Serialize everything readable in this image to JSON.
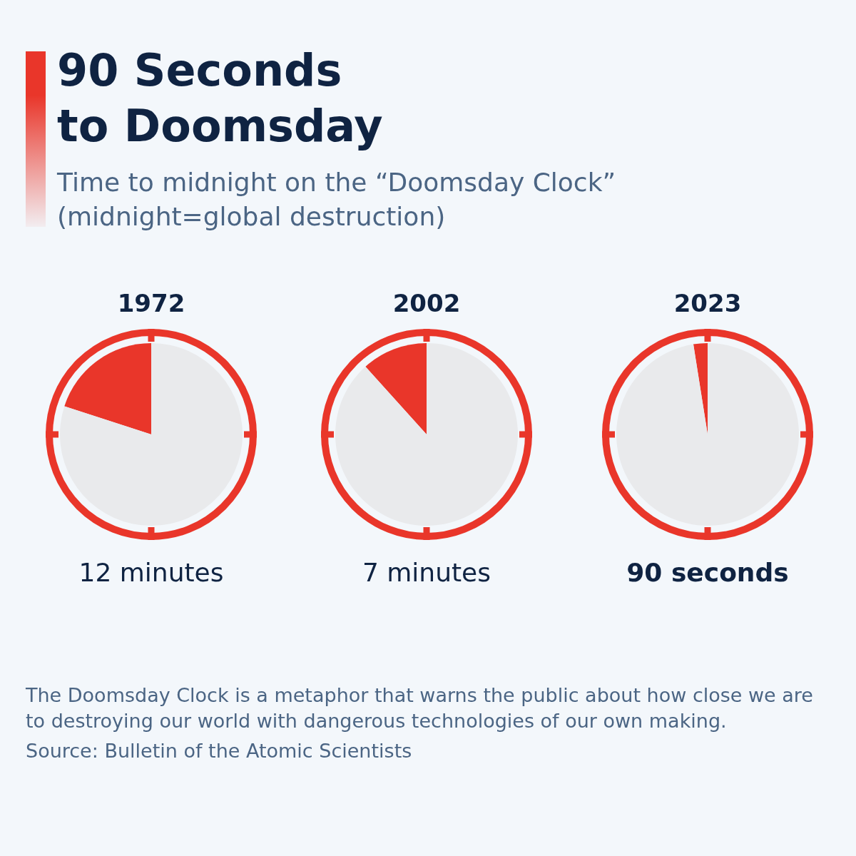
{
  "chart_data": [
    {
      "type": "other",
      "title": "90 Seconds to Doomsday",
      "subtitle": "Time to midnight on the “Doomsday Clock” (midnight=global destruction)"
    },
    {
      "type": "pie",
      "title": "1972",
      "categories": [
        "12 minutes",
        null
      ],
      "values": [
        12,
        48
      ],
      "colors": [
        "#e9362a",
        "#e9eaec"
      ]
    },
    {
      "type": "pie",
      "title": "2002",
      "categories": [
        "7 minutes",
        null
      ],
      "values": [
        7,
        53
      ],
      "colors": [
        "#e9362a",
        "#e9eaec"
      ]
    },
    {
      "type": "pie",
      "title": "2023",
      "categories": [
        "90 seconds",
        null
      ],
      "values": [
        90,
        3510
      ],
      "colors": [
        "#e9362a",
        "#e9eaec"
      ]
    },
    {
      "type": "other",
      "annotations": [
        "The Doomsday Clock is a metaphor that warns the public about how close we are to destroying our world with dangerous technologies of our own making.",
        "Source: Bulletin of the Atomic Scientists"
      ]
    }
  ]
}
